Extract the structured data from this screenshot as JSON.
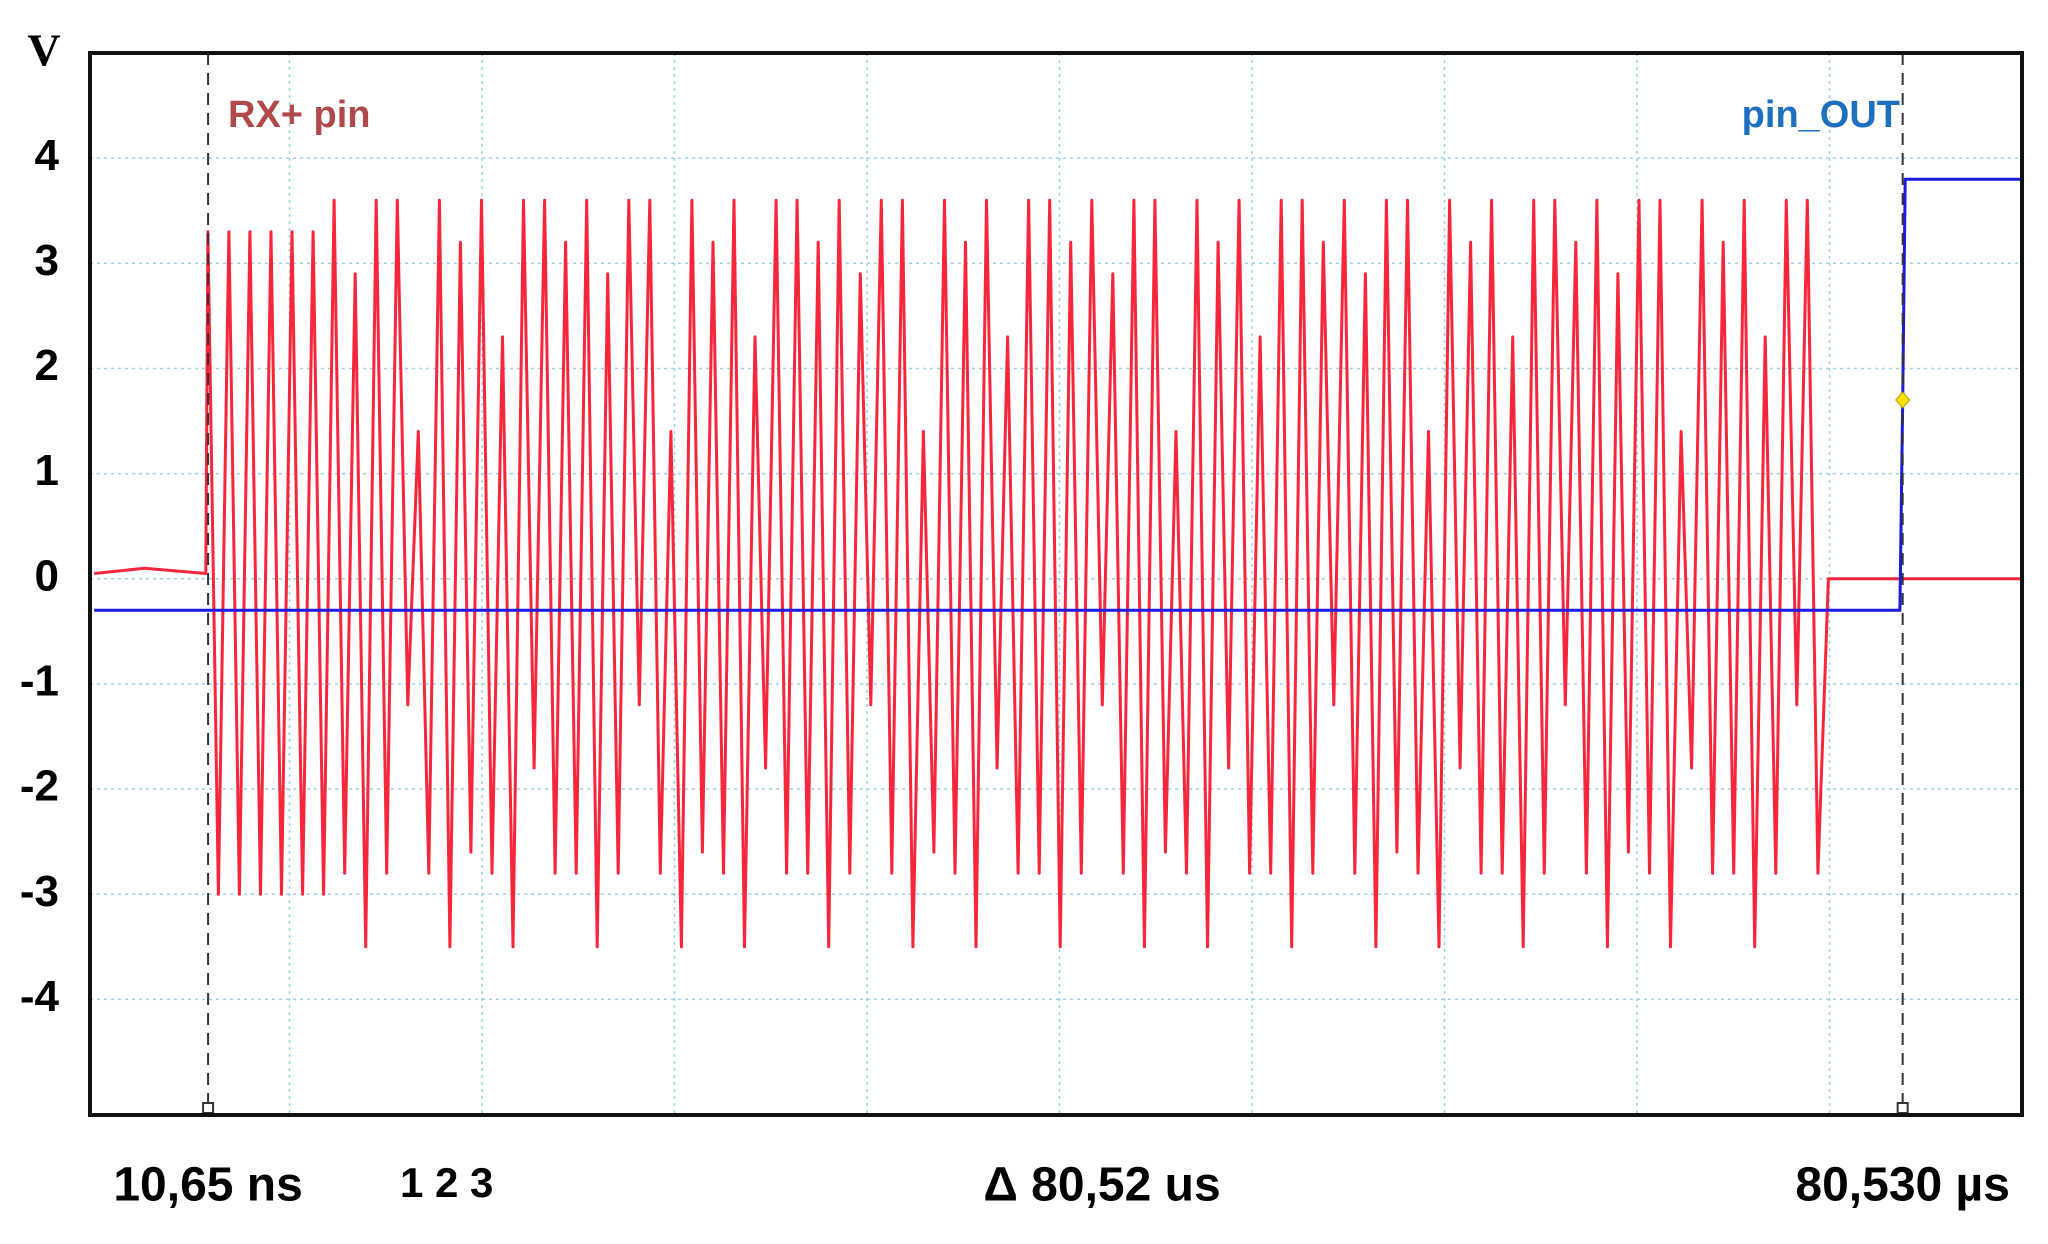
{
  "chart_data": {
    "type": "line",
    "ylabel": "V",
    "ylim": [
      -5.1,
      5.0
    ],
    "yticks": [
      -4,
      -3,
      -2,
      -1,
      0,
      1,
      2,
      3,
      4
    ],
    "xlim": [
      -5.6,
      86.2
    ],
    "grid": true,
    "series": [
      {
        "name": "RX+ pin",
        "color": "#f8263a",
        "label_color": "#b04a4a",
        "x": [
          -5.4,
          -3,
          -0.1,
          0,
          0.5,
          1,
          1.5,
          2,
          2.5,
          3,
          3.5,
          4,
          4.5,
          5,
          5.5,
          6,
          6.5,
          7,
          7.5,
          8,
          8.5,
          9,
          9.5,
          10,
          10.5,
          11,
          11.5,
          12,
          12.5,
          13,
          13.5,
          14,
          14.5,
          15,
          15.5,
          16,
          16.5,
          17,
          17.5,
          18,
          18.5,
          19,
          19.5,
          20,
          20.5,
          21,
          21.5,
          22,
          22.5,
          23,
          23.5,
          24,
          24.5,
          25,
          25.5,
          26,
          26.5,
          27,
          27.5,
          28,
          28.5,
          29,
          29.5,
          30,
          30.5,
          31,
          31.5,
          32,
          32.5,
          33,
          33.5,
          34,
          34.5,
          35,
          35.5,
          36,
          36.5,
          37,
          37.5,
          38,
          38.5,
          39,
          39.5,
          40,
          40.5,
          41,
          41.5,
          42,
          42.5,
          43,
          43.5,
          44,
          44.5,
          45,
          45.5,
          46,
          46.5,
          47,
          47.5,
          48,
          48.5,
          49,
          49.5,
          50,
          50.5,
          51,
          51.5,
          52,
          52.5,
          53,
          53.5,
          54,
          54.5,
          55,
          55.5,
          56,
          56.5,
          57,
          57.5,
          58,
          58.5,
          59,
          59.5,
          60,
          60.5,
          61,
          61.5,
          62,
          62.5,
          63,
          63.5,
          64,
          64.5,
          65,
          65.5,
          66,
          66.5,
          67,
          67.5,
          68,
          68.5,
          69,
          69.5,
          70,
          70.5,
          71,
          71.5,
          72,
          72.5,
          73,
          73.5,
          74,
          74.5,
          75,
          75.5,
          76,
          76.5,
          77,
          86.2
        ],
        "values": [
          0.05,
          0.1,
          0.05,
          3.3,
          -3.0,
          3.3,
          -3.0,
          3.3,
          -3.0,
          3.3,
          -3.0,
          3.3,
          -3.0,
          3.3,
          -3.0,
          3.6,
          -2.8,
          2.9,
          -3.5,
          3.6,
          -2.8,
          3.6,
          -1.2,
          1.4,
          -2.8,
          3.6,
          -3.5,
          3.2,
          -2.6,
          3.6,
          -2.8,
          2.3,
          -3.5,
          3.6,
          -1.8,
          3.6,
          -2.8,
          3.2,
          -2.8,
          3.6,
          -3.5,
          2.9,
          -2.8,
          3.6,
          -1.2,
          3.6,
          -2.8,
          1.4,
          -3.5,
          3.6,
          -2.6,
          3.2,
          -2.8,
          3.6,
          -3.5,
          2.3,
          -1.8,
          3.6,
          -2.8,
          3.6,
          -2.8,
          3.2,
          -3.5,
          3.6,
          -2.8,
          2.9,
          -1.2,
          3.6,
          -2.8,
          3.6,
          -3.5,
          1.4,
          -2.6,
          3.6,
          -2.8,
          3.2,
          -3.5,
          3.6,
          -1.8,
          2.3,
          -2.8,
          3.6,
          -2.8,
          3.6,
          -3.5,
          3.2,
          -2.8,
          3.6,
          -1.2,
          2.9,
          -2.8,
          3.6,
          -3.5,
          3.6,
          -2.6,
          1.4,
          -2.8,
          3.6,
          -3.5,
          3.2,
          -1.8,
          3.6,
          -2.8,
          2.3,
          -2.8,
          3.6,
          -3.5,
          3.6,
          -2.8,
          3.2,
          -1.2,
          3.6,
          -2.8,
          2.9,
          -3.5,
          3.6,
          -2.6,
          3.6,
          -2.8,
          1.4,
          -3.5,
          3.6,
          -1.8,
          3.2,
          -2.8,
          3.6,
          -2.8,
          2.3,
          -3.5,
          3.6,
          -2.8,
          3.6,
          -1.2,
          3.2,
          -2.8,
          3.6,
          -3.5,
          2.9,
          -2.6,
          3.6,
          -2.8,
          3.6,
          -3.5,
          1.4,
          -1.8,
          3.6,
          -2.8,
          3.2,
          -2.8,
          3.6,
          -3.5,
          2.3,
          -2.8,
          3.6,
          -1.2,
          3.6,
          -2.8,
          0,
          0
        ]
      },
      {
        "name": "pin_OUT",
        "color": "#1a1ae0",
        "label_color": "#1f6fbf",
        "x": [
          -5.4,
          80.2,
          80.4,
          80.53,
          80.65,
          86.2
        ],
        "values": [
          -0.3,
          -0.3,
          -0.3,
          1.7,
          3.8,
          3.8
        ]
      }
    ],
    "cursors": [
      {
        "value": 0.01065,
        "label": "10,65 ns"
      },
      {
        "value": 80.53,
        "label": "80,530 µs"
      }
    ],
    "trigger": {
      "x": 80.53,
      "y": 1.7
    },
    "annotations": [
      "1 2 3",
      "Δ 80,52 us"
    ]
  }
}
